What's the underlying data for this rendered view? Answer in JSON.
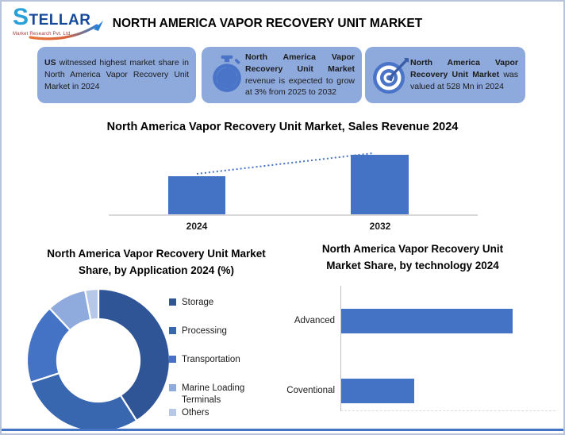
{
  "brand": {
    "logo_text": "STELLAR",
    "logo_sub": "Market Research Pvt. Ltd."
  },
  "header": {
    "title": "NORTH AMERICA VAPOR RECOVERY UNIT MARKET"
  },
  "highlights": [
    {
      "icon": "none",
      "bold": "US",
      "rest": " witnessed highest market share in North America Vapor Recovery Unit Market in 2024"
    },
    {
      "icon": "stopwatch-icon",
      "bold": "North America Vapor Recovery Unit Market",
      "rest": " revenue is expected to grow at 3% from 2025 to 2032"
    },
    {
      "icon": "target-icon",
      "bold": "North America Vapor Recovery Unit Market",
      "rest": " was valued at 528 Mn in 2024"
    }
  ],
  "colors": {
    "box_bg": "#8EA9DB",
    "bar_blue": "#4472C4",
    "axis_gray": "#D9D9D9",
    "frame": "#B7C3D9",
    "bottom_rule": "#4472C4"
  },
  "chart_data": [
    {
      "id": "sales-revenue",
      "type": "bar",
      "title": "North America Vapor Recovery Unit Market, Sales Revenue 2024",
      "categories": [
        "2024",
        "2032"
      ],
      "values_relative": [
        0.64,
        1.0
      ],
      "value_note": "no y-axis shown; 2024 valued at 528 Mn, ~3% growth 2025-2032 per highlights",
      "bar_color": "#4472C4",
      "trendline": true,
      "trendline_style": "dotted"
    },
    {
      "id": "by-application",
      "type": "donut",
      "title": "North America Vapor Recovery Unit Market Share, by Application 2024 (%)",
      "slices": [
        {
          "label": "Storage",
          "pct": 41,
          "color": "#2F5597"
        },
        {
          "label": "Processing",
          "pct": 29,
          "color": "#3866AF"
        },
        {
          "label": "Transportation",
          "pct": 18,
          "color": "#4472C4"
        },
        {
          "label": "Marine Loading Terminals",
          "pct": 9,
          "color": "#8FAADC"
        },
        {
          "label": "Others",
          "pct": 3,
          "color": "#B7C7E8"
        }
      ],
      "legend_position": "right"
    },
    {
      "id": "by-technology",
      "type": "bar",
      "orientation": "horizontal",
      "title": "North America Vapor Recovery Unit Market Share, by technology 2024",
      "categories": [
        "Advanced",
        "Coventional"
      ],
      "values_pct_of_axis": [
        80,
        34
      ],
      "bar_color": "#4472C4",
      "axis": "left vertical line, no ticks"
    }
  ]
}
